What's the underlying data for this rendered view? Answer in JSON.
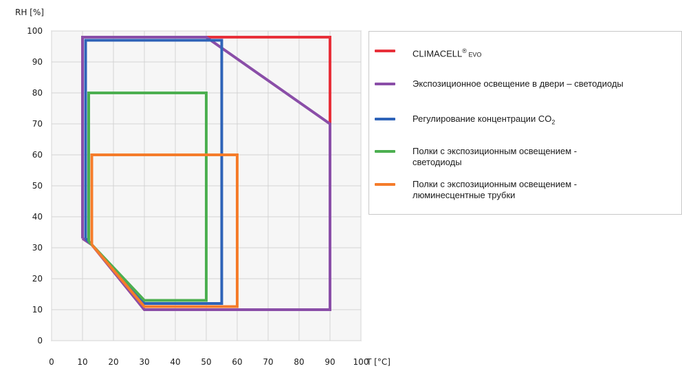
{
  "chart_data": {
    "type": "line",
    "title": "",
    "xlabel": "T [°C]",
    "ylabel": "RH [%]",
    "xlim": [
      0,
      100
    ],
    "ylim": [
      0,
      100
    ],
    "x_ticks": [
      "0",
      "10",
      "20",
      "30",
      "40",
      "50",
      "60",
      "70",
      "80",
      "90",
      "100"
    ],
    "y_ticks": [
      "0",
      "10",
      "20",
      "30",
      "40",
      "50",
      "60",
      "70",
      "80",
      "90",
      "100"
    ],
    "grid": true,
    "legend_position": "right",
    "series": [
      {
        "name": "CLIMACELL® EVO",
        "color": "#e8303a",
        "points": [
          [
            10,
            33
          ],
          [
            10,
            98
          ],
          [
            90,
            98
          ],
          [
            90,
            10
          ],
          [
            30,
            10
          ],
          [
            13,
            31
          ],
          [
            10,
            33
          ]
        ]
      },
      {
        "name": "Экспозиционное освещение в двери – светодиоды",
        "color": "#8a4ea8",
        "points": [
          [
            10,
            33
          ],
          [
            10,
            98
          ],
          [
            50,
            98
          ],
          [
            90,
            70
          ],
          [
            90,
            10
          ],
          [
            30,
            10
          ],
          [
            13,
            31
          ],
          [
            10,
            33
          ]
        ]
      },
      {
        "name": "Регулирование концентрации CO2",
        "color": "#2e63b8",
        "points": [
          [
            11,
            33
          ],
          [
            11,
            97
          ],
          [
            55,
            97
          ],
          [
            55,
            12
          ],
          [
            30,
            12
          ],
          [
            13,
            31
          ],
          [
            11,
            33
          ]
        ]
      },
      {
        "name": "Полки с экспозиционным освещением - светодиоды",
        "color": "#4caf50",
        "points": [
          [
            12,
            32
          ],
          [
            12,
            80
          ],
          [
            50,
            80
          ],
          [
            50,
            13
          ],
          [
            30,
            13
          ],
          [
            13,
            31
          ],
          [
            12,
            32
          ]
        ]
      },
      {
        "name": "Полки с экспозиционным освещением - люминесцентные трубки",
        "color": "#f57c2a",
        "points": [
          [
            13,
            31
          ],
          [
            13,
            60
          ],
          [
            60,
            60
          ],
          [
            60,
            11
          ],
          [
            30,
            11
          ],
          [
            13,
            31
          ]
        ]
      }
    ]
  },
  "legend": {
    "items": [
      {
        "label": "CLIMACELL",
        "sup": "®",
        "sub": " EVO"
      },
      {
        "label": "Экспозиционное освещение в двери – светодиоды"
      },
      {
        "label": "Регулирование концентрации CO",
        "sub": "2"
      },
      {
        "label": "Полки с экспозиционным освещением -",
        "line2": "светодиоды"
      },
      {
        "label": "Полки с экспозиционным освещением -",
        "line2": "люминесцентные трубки"
      }
    ]
  }
}
